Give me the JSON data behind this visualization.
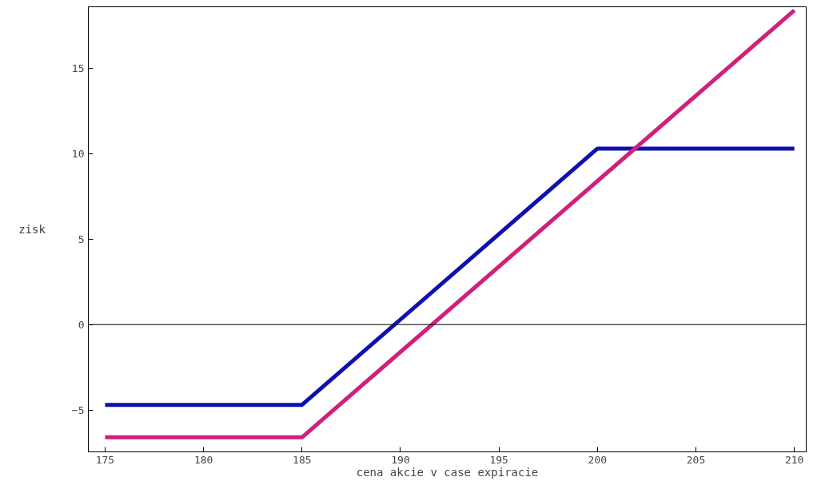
{
  "chart_data": {
    "type": "line",
    "xlabel": "cena akcie v case expiracie",
    "ylabel": "zisk",
    "xlim": [
      174.15,
      210.6
    ],
    "ylim": [
      -7.45,
      18.6
    ],
    "xticks": [
      175,
      180,
      185,
      190,
      195,
      200,
      205,
      210
    ],
    "yticks": [
      -5,
      0,
      5,
      10,
      15
    ],
    "grid": false,
    "marker": "none",
    "line_style": "solid",
    "ref_lines": [
      {
        "axis": "y",
        "value": 0,
        "color": "#000000"
      }
    ],
    "series": [
      {
        "color": "#1010b0",
        "x": [
          175,
          185,
          200,
          210
        ],
        "values": [
          -4.7,
          -4.7,
          10.3,
          10.3
        ]
      },
      {
        "color": "#d0207a",
        "x": [
          175,
          185,
          210
        ],
        "values": [
          -6.6,
          -6.6,
          18.4
        ]
      }
    ]
  }
}
